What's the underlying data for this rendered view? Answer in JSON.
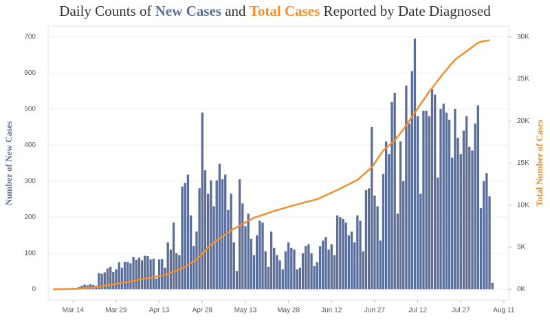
{
  "chart_data": {
    "type": "bar",
    "title_parts": [
      "Daily Counts of",
      "and",
      "Reported by Date Diagnosed"
    ],
    "ylabel": "Number of New Cases",
    "y2label": "Total Number of Cases",
    "ylim": [
      -30,
      730
    ],
    "yticks": [
      0,
      100,
      200,
      300,
      400,
      500,
      600,
      700
    ],
    "y2lim": [
      -1286,
      31286
    ],
    "y2ticks": [
      {
        "value": 0,
        "label": "0K"
      },
      {
        "value": 5000,
        "label": "5K"
      },
      {
        "value": 10000,
        "label": "10K"
      },
      {
        "value": 15000,
        "label": "15K"
      },
      {
        "value": 20000,
        "label": "20K"
      },
      {
        "value": 25000,
        "label": "25K"
      },
      {
        "value": 30000,
        "label": "30K"
      }
    ],
    "grid": true,
    "categories": [
      null,
      null,
      null,
      null,
      null,
      null,
      null,
      "Mar 14",
      null,
      null,
      null,
      null,
      null,
      null,
      null,
      null,
      null,
      null,
      null,
      null,
      null,
      null,
      "Mar 29",
      null,
      null,
      null,
      null,
      null,
      null,
      null,
      null,
      null,
      null,
      null,
      null,
      null,
      null,
      "Apr 13",
      null,
      null,
      null,
      null,
      null,
      null,
      null,
      null,
      null,
      null,
      null,
      null,
      null,
      null,
      "Apr 28",
      null,
      null,
      null,
      null,
      null,
      null,
      null,
      null,
      null,
      null,
      null,
      null,
      null,
      null,
      "May 13",
      null,
      null,
      null,
      null,
      null,
      null,
      null,
      null,
      null,
      null,
      null,
      null,
      null,
      null,
      "May 28",
      null,
      null,
      null,
      null,
      null,
      null,
      null,
      null,
      null,
      null,
      null,
      null,
      null,
      null,
      "Jun 12",
      null,
      null,
      null,
      null,
      null,
      null,
      null,
      null,
      null,
      null,
      null,
      null,
      null,
      null,
      "Jun 27",
      null,
      null,
      null,
      null,
      null,
      null,
      null,
      null,
      null,
      null,
      null,
      null,
      null,
      null,
      "Jul 12",
      null,
      null,
      null,
      null,
      null,
      null,
      null,
      null,
      null,
      null,
      null,
      null,
      null,
      null,
      "Jul 27",
      null,
      null,
      null,
      null,
      null,
      null,
      null,
      null,
      null,
      null,
      null,
      null,
      null,
      null,
      "Aug 11"
    ],
    "series": [
      {
        "name": "New Cases",
        "type": "bar",
        "color": "#5b6e99",
        "values": [
          0,
          0,
          1,
          2,
          1,
          3,
          2,
          4,
          3,
          6,
          10,
          13,
          11,
          14,
          12,
          10,
          45,
          43,
          47,
          58,
          62,
          48,
          55,
          75,
          60,
          76,
          76,
          72,
          90,
          82,
          88,
          80,
          93,
          92,
          83,
          85,
          30,
          83,
          84,
          60,
          130,
          110,
          185,
          100,
          95,
          285,
          295,
          318,
          205,
          120,
          160,
          280,
          490,
          330,
          265,
          302,
          230,
          302,
          348,
          305,
          318,
          220,
          265,
          130,
          50,
          305,
          238,
          175,
          210,
          140,
          95,
          150,
          190,
          185,
          105,
          62,
          160,
          115,
          95,
          80,
          55,
          105,
          130,
          115,
          110,
          55,
          60,
          100,
          120,
          125,
          100,
          65,
          75,
          120,
          135,
          145,
          110,
          125,
          95,
          205,
          200,
          195,
          185,
          150,
          160,
          130,
          205,
          190,
          105,
          275,
          280,
          450,
          260,
          230,
          135,
          320,
          410,
          375,
          520,
          545,
          210,
          410,
          300,
          565,
          460,
          605,
          695,
          480,
          265,
          495,
          495,
          480,
          555,
          540,
          310,
          500,
          515,
          490,
          470,
          365,
          500,
          420,
          375,
          440,
          480,
          395,
          385,
          460,
          510,
          225,
          300,
          322,
          258,
          18,
          null,
          null,
          null,
          null
        ]
      },
      {
        "name": "Total Cases",
        "type": "line",
        "axis": "y2",
        "color": "#f28e2b",
        "values": [
          0,
          5,
          10,
          15,
          20,
          30,
          40,
          50,
          65,
          80,
          100,
          120,
          150,
          180,
          220,
          260,
          300,
          360,
          415,
          475,
          535,
          590,
          650,
          710,
          765,
          825,
          885,
          940,
          1000,
          1065,
          1130,
          1190,
          1255,
          1320,
          1380,
          1445,
          1510,
          1575,
          1635,
          1700,
          1835,
          1965,
          2100,
          2235,
          2365,
          2500,
          2700,
          2900,
          3100,
          3300,
          3500,
          3860,
          4220,
          4580,
          4940,
          5300,
          5545,
          5785,
          6030,
          6270,
          6515,
          6755,
          7000,
          7190,
          7375,
          7560,
          7750,
          7940,
          8125,
          8310,
          8500,
          8615,
          8730,
          8840,
          8955,
          9070,
          9185,
          9300,
          9400,
          9500,
          9600,
          9700,
          9800,
          9900,
          10000,
          10090,
          10175,
          10260,
          10350,
          10440,
          10525,
          10610,
          10700,
          10860,
          11015,
          11170,
          11330,
          11485,
          11640,
          11800,
          11970,
          12145,
          12315,
          12485,
          12655,
          12830,
          13000,
          13300,
          13600,
          13900,
          14200,
          14500,
          15000,
          15500,
          16000,
          16500,
          16800,
          17100,
          17400,
          17700,
          18135,
          18565,
          19000,
          19500,
          20000,
          20500,
          21000,
          21500,
          22000,
          22500,
          23000,
          23500,
          23940,
          24380,
          24820,
          25260,
          25700,
          26100,
          26500,
          26900,
          27300,
          27550,
          27800,
          28050,
          28300,
          28550,
          28800,
          29050,
          29300,
          29400,
          29500,
          29550,
          29600,
          null,
          null,
          null,
          null,
          null
        ]
      }
    ]
  }
}
